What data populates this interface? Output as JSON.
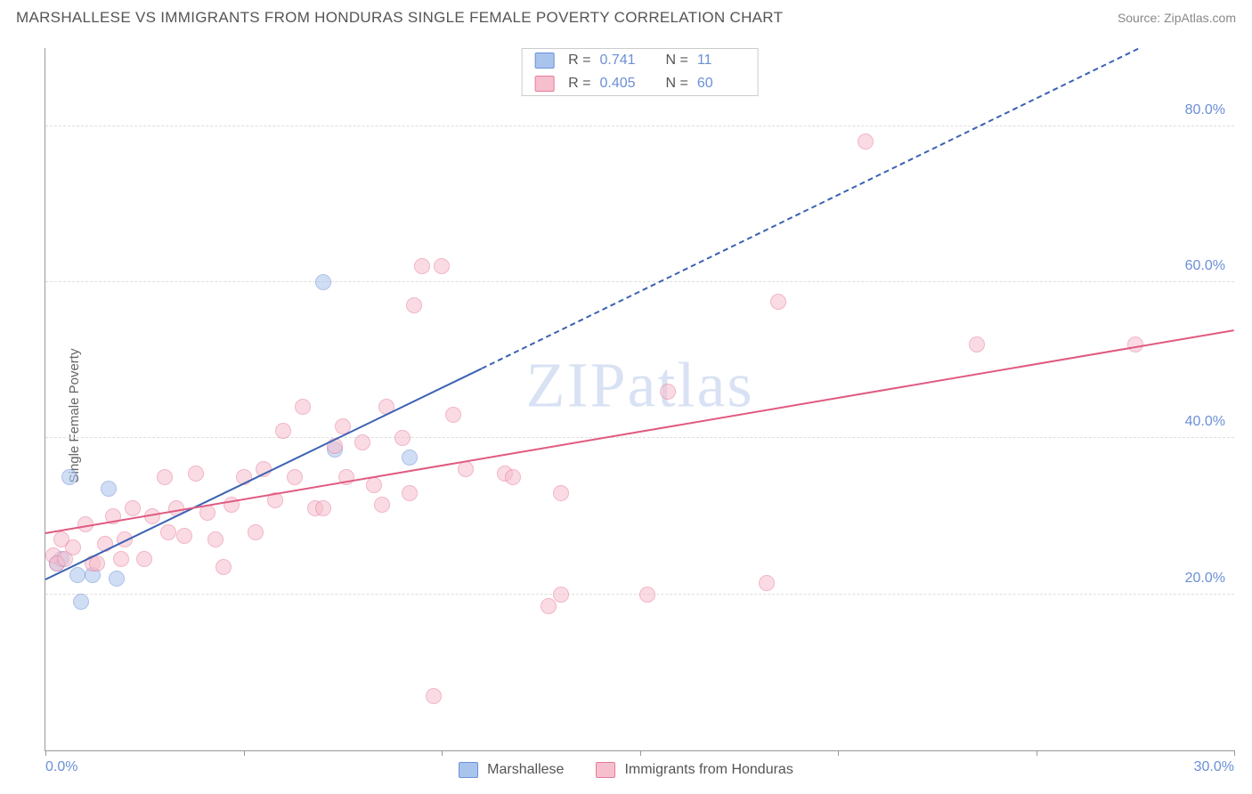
{
  "header": {
    "title": "MARSHALLESE VS IMMIGRANTS FROM HONDURAS SINGLE FEMALE POVERTY CORRELATION CHART",
    "source": "Source: ZipAtlas.com"
  },
  "axes": {
    "y_title": "Single Female Poverty",
    "xlim": [
      0,
      30
    ],
    "ylim": [
      0,
      90
    ],
    "y_ticks": [
      20,
      40,
      60,
      80
    ],
    "y_tick_labels": [
      "20.0%",
      "40.0%",
      "60.0%",
      "80.0%"
    ],
    "x_ticks": [
      0,
      5,
      10,
      15,
      20,
      25,
      30
    ],
    "x_tick_labels": [
      "0.0%",
      "",
      "",
      "",
      "",
      "",
      "30.0%"
    ],
    "grid_color": "#dddddd",
    "tick_label_color": "#6b8fd6",
    "axis_color": "#999999"
  },
  "watermark": "ZIPatlas",
  "series": [
    {
      "key": "marshallese",
      "label": "Marshallese",
      "fill_color": "#a9c4ec",
      "stroke_color": "#6b8fd6",
      "line_color": "#3a62b3",
      "r_value": "0.741",
      "n_value": "11",
      "regression": {
        "x1": 0,
        "y1": 22,
        "x2_solid": 11,
        "y2_solid": 49,
        "x2_dash": 30,
        "y2_dash": 96
      },
      "points": [
        [
          0.3,
          24
        ],
        [
          0.4,
          24.5
        ],
        [
          0.6,
          35
        ],
        [
          0.8,
          22.5
        ],
        [
          0.9,
          19
        ],
        [
          1.2,
          22.5
        ],
        [
          1.6,
          33.5
        ],
        [
          1.8,
          22
        ],
        [
          7.0,
          60
        ],
        [
          7.3,
          38.5
        ],
        [
          9.2,
          37.5
        ]
      ]
    },
    {
      "key": "honduras",
      "label": "Immigrants from Honduras",
      "fill_color": "#f6bfcd",
      "stroke_color": "#e87a9a",
      "line_color": "#e05a80",
      "r_value": "0.405",
      "n_value": "60",
      "regression": {
        "x1": 0,
        "y1": 28,
        "x2_solid": 30,
        "y2_solid": 54,
        "x2_dash": 30,
        "y2_dash": 54
      },
      "points": [
        [
          0.2,
          25
        ],
        [
          0.3,
          24
        ],
        [
          0.4,
          27
        ],
        [
          0.5,
          24.5
        ],
        [
          0.7,
          26
        ],
        [
          1.0,
          29
        ],
        [
          1.2,
          24
        ],
        [
          1.3,
          24
        ],
        [
          1.5,
          26.5
        ],
        [
          1.7,
          30
        ],
        [
          1.9,
          24.5
        ],
        [
          2.0,
          27
        ],
        [
          2.2,
          31
        ],
        [
          2.5,
          24.5
        ],
        [
          2.7,
          30
        ],
        [
          3.0,
          35
        ],
        [
          3.1,
          28
        ],
        [
          3.3,
          31
        ],
        [
          3.5,
          27.5
        ],
        [
          3.8,
          35.5
        ],
        [
          4.1,
          30.5
        ],
        [
          4.3,
          27
        ],
        [
          4.5,
          23.5
        ],
        [
          4.7,
          31.5
        ],
        [
          5.0,
          35
        ],
        [
          5.3,
          28
        ],
        [
          5.5,
          36
        ],
        [
          5.8,
          32
        ],
        [
          6.0,
          41
        ],
        [
          6.3,
          35
        ],
        [
          6.5,
          44
        ],
        [
          6.8,
          31
        ],
        [
          7.0,
          31
        ],
        [
          7.3,
          39
        ],
        [
          7.5,
          41.5
        ],
        [
          7.6,
          35
        ],
        [
          8.0,
          39.5
        ],
        [
          8.3,
          34
        ],
        [
          8.5,
          31.5
        ],
        [
          8.6,
          44
        ],
        [
          9.0,
          40
        ],
        [
          9.2,
          33
        ],
        [
          9.3,
          57
        ],
        [
          9.5,
          62
        ],
        [
          9.8,
          7
        ],
        [
          10.0,
          62
        ],
        [
          10.3,
          43
        ],
        [
          10.6,
          36
        ],
        [
          11.6,
          35.5
        ],
        [
          11.8,
          35
        ],
        [
          12.7,
          18.5
        ],
        [
          13.0,
          20
        ],
        [
          13.0,
          33
        ],
        [
          15.2,
          20
        ],
        [
          15.7,
          46
        ],
        [
          18.2,
          21.5
        ],
        [
          18.5,
          57.5
        ],
        [
          20.7,
          78
        ],
        [
          23.5,
          52
        ],
        [
          27.5,
          52
        ]
      ]
    }
  ],
  "legend_bottom": [
    {
      "series": 0
    },
    {
      "series": 1
    }
  ]
}
